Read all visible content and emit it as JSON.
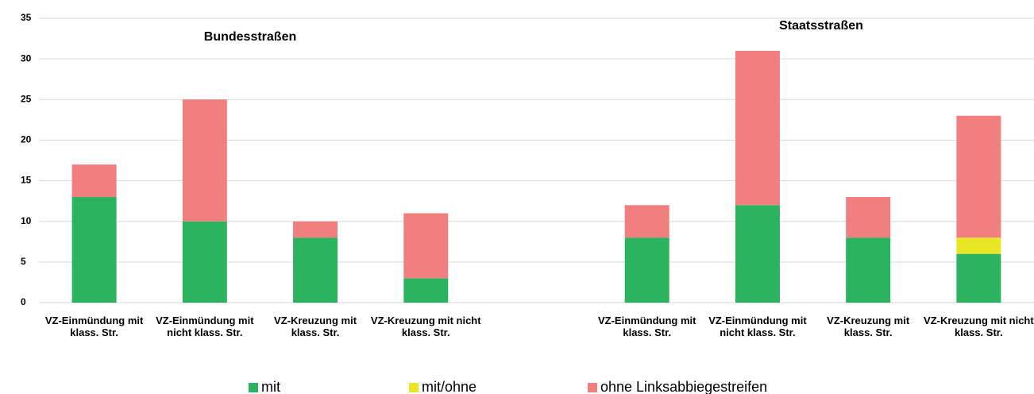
{
  "chart_data": {
    "type": "stacked_bar",
    "annotations": [
      "Bundesstraßen",
      "Staatsstraßen"
    ],
    "categories": [
      "VZ-Einmündung mit klass. Str.",
      "VZ-Einmündung mit nicht klass. Str.",
      "VZ-Kreuzung mit klass. Str.",
      "VZ-Kreuzung mit nicht klass. Str.",
      null,
      "VZ-Einmündung mit klass. Str.",
      "VZ-Einmündung mit nicht klass. Str.",
      "VZ-Kreuzung mit klass. Str.",
      "VZ-Kreuzung mit nicht klass. Str."
    ],
    "series": [
      {
        "name": "mit",
        "color": "#2bb35f",
        "values": [
          13,
          10,
          8,
          3,
          null,
          8,
          12,
          8,
          6
        ]
      },
      {
        "name": "mit/ohne",
        "color": "#e8e625",
        "values": [
          0,
          0,
          0,
          0,
          null,
          0,
          0,
          0,
          2
        ]
      },
      {
        "name": "ohne Linksabbiegestreifen",
        "color": "#f27f80",
        "values": [
          4,
          15,
          2,
          8,
          null,
          4,
          19,
          5,
          15
        ]
      }
    ],
    "ylim": [
      0,
      35
    ],
    "yticks": [
      0,
      5,
      10,
      15,
      20,
      25,
      30,
      35
    ],
    "grid": true,
    "legend": "bottom"
  }
}
